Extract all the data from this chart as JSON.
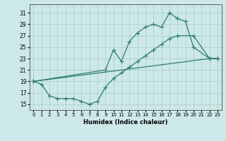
{
  "xlabel": "Humidex (Indice chaleur)",
  "xlim": [
    -0.5,
    23.5
  ],
  "ylim": [
    14.0,
    32.5
  ],
  "yticks": [
    15,
    17,
    19,
    21,
    23,
    25,
    27,
    29,
    31
  ],
  "xticks": [
    0,
    1,
    2,
    3,
    4,
    5,
    6,
    7,
    8,
    9,
    10,
    11,
    12,
    13,
    14,
    15,
    16,
    17,
    18,
    19,
    20,
    21,
    22,
    23
  ],
  "bg_color": "#cce8e8",
  "line_color": "#2e7d6e",
  "grid_color": "#b0d0d0",
  "line1_x": [
    0,
    9,
    10,
    11,
    12,
    13,
    14,
    15,
    16,
    17,
    18,
    19,
    20,
    22,
    23
  ],
  "line1_y": [
    19,
    21,
    24.5,
    22.5,
    26,
    27.5,
    28.5,
    29,
    28.5,
    31,
    30,
    29.5,
    25,
    23,
    23
  ],
  "line2_x": [
    0,
    1,
    2,
    3,
    4,
    5,
    6,
    7,
    8,
    9,
    10,
    11,
    12,
    13,
    14,
    15,
    16,
    17,
    18,
    20,
    22,
    23
  ],
  "line2_y": [
    19,
    18.5,
    16.5,
    16,
    16,
    16,
    15.5,
    15,
    15.5,
    18,
    19.5,
    20.5,
    21.5,
    22.5,
    23.5,
    24.5,
    25.5,
    26.5,
    27,
    27,
    23,
    23
  ],
  "line3_x": [
    0,
    22,
    23
  ],
  "line3_y": [
    19,
    23,
    23
  ]
}
